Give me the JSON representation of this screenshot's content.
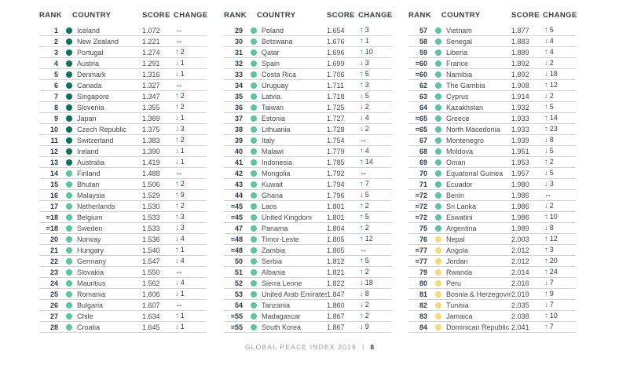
{
  "table_headers": {
    "rank": "RANK",
    "country": "COUNTRY",
    "score": "SCORE",
    "change": "CHANGE"
  },
  "footer": {
    "title": "GLOBAL PEACE INDEX 2019",
    "separator": "|",
    "page": "8"
  },
  "icons": {
    "up": "↑",
    "down": "↓",
    "same": "↔"
  },
  "colors": {
    "tier_very_high": "#0f7060",
    "tier_high": "#5fc3a3",
    "tier_medium": "#f6d87f",
    "arrow_up": "#00a651",
    "arrow_down": "#e8362d",
    "arrow_same": "#333e48",
    "header_text": "#333e48",
    "row_line": "#d4d4d4"
  },
  "columns": [
    {
      "rows": [
        {
          "rank": "1",
          "country": "Iceland",
          "score": "1.072",
          "tier": "very_high",
          "dir": "same",
          "delta": ""
        },
        {
          "rank": "2",
          "country": "New Zealand",
          "score": "1.221",
          "tier": "very_high",
          "dir": "same",
          "delta": ""
        },
        {
          "rank": "3",
          "country": "Portugal",
          "score": "1.274",
          "tier": "very_high",
          "dir": "up",
          "delta": "2"
        },
        {
          "rank": "4",
          "country": "Austria",
          "score": "1.291",
          "tier": "very_high",
          "dir": "down",
          "delta": "1"
        },
        {
          "rank": "5",
          "country": "Denmark",
          "score": "1.316",
          "tier": "very_high",
          "dir": "down",
          "delta": "1"
        },
        {
          "rank": "6",
          "country": "Canada",
          "score": "1.327",
          "tier": "very_high",
          "dir": "same",
          "delta": ""
        },
        {
          "rank": "7",
          "country": "Singapore",
          "score": "1.347",
          "tier": "very_high",
          "dir": "up",
          "delta": "2"
        },
        {
          "rank": "8",
          "country": "Slovenia",
          "score": "1.355",
          "tier": "very_high",
          "dir": "up",
          "delta": "2"
        },
        {
          "rank": "9",
          "country": "Japan",
          "score": "1.369",
          "tier": "very_high",
          "dir": "down",
          "delta": "1"
        },
        {
          "rank": "10",
          "country": "Czech Republic",
          "score": "1.375",
          "tier": "very_high",
          "dir": "down",
          "delta": "3"
        },
        {
          "rank": "11",
          "country": "Switzerland",
          "score": "1.383",
          "tier": "very_high",
          "dir": "up",
          "delta": "2"
        },
        {
          "rank": "12",
          "country": "Ireland",
          "score": "1.390",
          "tier": "very_high",
          "dir": "down",
          "delta": "1"
        },
        {
          "rank": "13",
          "country": "Australia",
          "score": "1.419",
          "tier": "very_high",
          "dir": "down",
          "delta": "1"
        },
        {
          "rank": "14",
          "country": "Finland",
          "score": "1.488",
          "tier": "high",
          "dir": "same",
          "delta": ""
        },
        {
          "rank": "15",
          "country": "Bhutan",
          "score": "1.506",
          "tier": "high",
          "dir": "up",
          "delta": "2"
        },
        {
          "rank": "16",
          "country": "Malaysia",
          "score": "1.529",
          "tier": "high",
          "dir": "up",
          "delta": "9"
        },
        {
          "rank": "17",
          "country": "Netherlands",
          "score": "1.530",
          "tier": "high",
          "dir": "up",
          "delta": "2"
        },
        {
          "rank": "=18",
          "country": "Belgium",
          "score": "1.533",
          "tier": "high",
          "dir": "up",
          "delta": "3"
        },
        {
          "rank": "=18",
          "country": "Sweden",
          "score": "1.533",
          "tier": "high",
          "dir": "down",
          "delta": "3"
        },
        {
          "rank": "20",
          "country": "Norway",
          "score": "1.536",
          "tier": "high",
          "dir": "down",
          "delta": "4"
        },
        {
          "rank": "21",
          "country": "Hungary",
          "score": "1.540",
          "tier": "high",
          "dir": "up",
          "delta": "1"
        },
        {
          "rank": "22",
          "country": "Germany",
          "score": "1.547",
          "tier": "high",
          "dir": "down",
          "delta": "4"
        },
        {
          "rank": "23",
          "country": "Slovakia",
          "score": "1.550",
          "tier": "high",
          "dir": "same",
          "delta": ""
        },
        {
          "rank": "24",
          "country": "Mauritius",
          "score": "1.562",
          "tier": "high",
          "dir": "down",
          "delta": "4"
        },
        {
          "rank": "25",
          "country": "Romania",
          "score": "1.606",
          "tier": "high",
          "dir": "down",
          "delta": "1"
        },
        {
          "rank": "26",
          "country": "Bulgaria",
          "score": "1.607",
          "tier": "high",
          "dir": "same",
          "delta": ""
        },
        {
          "rank": "27",
          "country": "Chile",
          "score": "1.634",
          "tier": "high",
          "dir": "up",
          "delta": "1"
        },
        {
          "rank": "28",
          "country": "Croatia",
          "score": "1.645",
          "tier": "high",
          "dir": "down",
          "delta": "1"
        }
      ]
    },
    {
      "rows": [
        {
          "rank": "29",
          "country": "Poland",
          "score": "1.654",
          "tier": "high",
          "dir": "up",
          "delta": "3"
        },
        {
          "rank": "30",
          "country": "Botswana",
          "score": "1.676",
          "tier": "high",
          "dir": "up",
          "delta": "1"
        },
        {
          "rank": "31",
          "country": "Qatar",
          "score": "1.696",
          "tier": "high",
          "dir": "up",
          "delta": "10"
        },
        {
          "rank": "32",
          "country": "Spain",
          "score": "1.699",
          "tier": "high",
          "dir": "down",
          "delta": "3"
        },
        {
          "rank": "33",
          "country": "Costa Rica",
          "score": "1.706",
          "tier": "high",
          "dir": "up",
          "delta": "5"
        },
        {
          "rank": "34",
          "country": "Uruguay",
          "score": "1.711",
          "tier": "high",
          "dir": "up",
          "delta": "3"
        },
        {
          "rank": "35",
          "country": "Latvia",
          "score": "1.718",
          "tier": "high",
          "dir": "down",
          "delta": "5"
        },
        {
          "rank": "36",
          "country": "Taiwan",
          "score": "1.725",
          "tier": "high",
          "dir": "down",
          "delta": "2"
        },
        {
          "rank": "37",
          "country": "Estonia",
          "score": "1.727",
          "tier": "high",
          "dir": "down",
          "delta": "4"
        },
        {
          "rank": "38",
          "country": "Lithuania",
          "score": "1.728",
          "tier": "high",
          "dir": "down",
          "delta": "2"
        },
        {
          "rank": "39",
          "country": "Italy",
          "score": "1.754",
          "tier": "high",
          "dir": "same",
          "delta": ""
        },
        {
          "rank": "40",
          "country": "Malawi",
          "score": "1.779",
          "tier": "high",
          "dir": "up",
          "delta": "4"
        },
        {
          "rank": "41",
          "country": "Indonesia",
          "score": "1.785",
          "tier": "high",
          "dir": "up",
          "delta": "14"
        },
        {
          "rank": "42",
          "country": "Mongolia",
          "score": "1.792",
          "tier": "high",
          "dir": "same",
          "delta": ""
        },
        {
          "rank": "43",
          "country": "Kuwait",
          "score": "1.794",
          "tier": "high",
          "dir": "up",
          "delta": "7"
        },
        {
          "rank": "44",
          "country": "Ghana",
          "score": "1.796",
          "tier": "high",
          "dir": "down",
          "delta": "5"
        },
        {
          "rank": "=45",
          "country": "Laos",
          "score": "1.801",
          "tier": "high",
          "dir": "up",
          "delta": "2"
        },
        {
          "rank": "=45",
          "country": "United Kingdom",
          "score": "1.801",
          "tier": "high",
          "dir": "up",
          "delta": "5"
        },
        {
          "rank": "47",
          "country": "Panama",
          "score": "1.804",
          "tier": "high",
          "dir": "up",
          "delta": "2"
        },
        {
          "rank": "=48",
          "country": "Timor-Leste",
          "score": "1.805",
          "tier": "high",
          "dir": "up",
          "delta": "12"
        },
        {
          "rank": "=48",
          "country": "Zambia",
          "score": "1.805",
          "tier": "high",
          "dir": "same",
          "delta": ""
        },
        {
          "rank": "50",
          "country": "Serbia",
          "score": "1.812",
          "tier": "high",
          "dir": "up",
          "delta": "5"
        },
        {
          "rank": "51",
          "country": "Albania",
          "score": "1.821",
          "tier": "high",
          "dir": "up",
          "delta": "2"
        },
        {
          "rank": "52",
          "country": "Sierra Leone",
          "score": "1.822",
          "tier": "high",
          "dir": "down",
          "delta": "18"
        },
        {
          "rank": "53",
          "country": "United Arab Emirates",
          "score": "1.847",
          "tier": "high",
          "dir": "down",
          "delta": "8"
        },
        {
          "rank": "54",
          "country": "Tanzania",
          "score": "1.860",
          "tier": "high",
          "dir": "down",
          "delta": "2"
        },
        {
          "rank": "=55",
          "country": "Madagascar",
          "score": "1.867",
          "tier": "high",
          "dir": "up",
          "delta": "2"
        },
        {
          "rank": "=55",
          "country": "South Korea",
          "score": "1.867",
          "tier": "high",
          "dir": "down",
          "delta": "9"
        }
      ]
    },
    {
      "rows": [
        {
          "rank": "57",
          "country": "Vietnam",
          "score": "1.877",
          "tier": "high",
          "dir": "up",
          "delta": "5"
        },
        {
          "rank": "58",
          "country": "Senegal",
          "score": "1.883",
          "tier": "high",
          "dir": "down",
          "delta": "4"
        },
        {
          "rank": "59",
          "country": "Liberia",
          "score": "1.889",
          "tier": "high",
          "dir": "up",
          "delta": "4"
        },
        {
          "rank": "=60",
          "country": "France",
          "score": "1.892",
          "tier": "high",
          "dir": "down",
          "delta": "2"
        },
        {
          "rank": "=60",
          "country": "Namibia",
          "score": "1.892",
          "tier": "high",
          "dir": "down",
          "delta": "18"
        },
        {
          "rank": "62",
          "country": "The Gambia",
          "score": "1.908",
          "tier": "high",
          "dir": "up",
          "delta": "12"
        },
        {
          "rank": "63",
          "country": "Cyprus",
          "score": "1.914",
          "tier": "high",
          "dir": "down",
          "delta": "2"
        },
        {
          "rank": "64",
          "country": "Kazakhstan",
          "score": "1.932",
          "tier": "high",
          "dir": "up",
          "delta": "5"
        },
        {
          "rank": "=65",
          "country": "Greece",
          "score": "1.933",
          "tier": "high",
          "dir": "up",
          "delta": "14"
        },
        {
          "rank": "=65",
          "country": "North Macedonia",
          "score": "1.933",
          "tier": "high",
          "dir": "up",
          "delta": "23"
        },
        {
          "rank": "67",
          "country": "Montenegro",
          "score": "1.939",
          "tier": "high",
          "dir": "down",
          "delta": "8"
        },
        {
          "rank": "68",
          "country": "Moldova",
          "score": "1.951",
          "tier": "high",
          "dir": "down",
          "delta": "5"
        },
        {
          "rank": "69",
          "country": "Oman",
          "score": "1.953",
          "tier": "high",
          "dir": "up",
          "delta": "2"
        },
        {
          "rank": "70",
          "country": "Equatorial Guinea",
          "score": "1.957",
          "tier": "high",
          "dir": "down",
          "delta": "5"
        },
        {
          "rank": "71",
          "country": "Ecuador",
          "score": "1.980",
          "tier": "high",
          "dir": "down",
          "delta": "3"
        },
        {
          "rank": "=72",
          "country": "Benin",
          "score": "1.986",
          "tier": "high",
          "dir": "same",
          "delta": ""
        },
        {
          "rank": "=72",
          "country": "Sri Lanka",
          "score": "1.986",
          "tier": "high",
          "dir": "down",
          "delta": "2"
        },
        {
          "rank": "=72",
          "country": "Eswatini",
          "score": "1.986",
          "tier": "high",
          "dir": "up",
          "delta": "10"
        },
        {
          "rank": "75",
          "country": "Argentina",
          "score": "1.989",
          "tier": "high",
          "dir": "down",
          "delta": "8"
        },
        {
          "rank": "76",
          "country": "Nepal",
          "score": "2.003",
          "tier": "medium",
          "dir": "up",
          "delta": "12"
        },
        {
          "rank": "=77",
          "country": "Angola",
          "score": "2.012",
          "tier": "medium",
          "dir": "up",
          "delta": "3"
        },
        {
          "rank": "=77",
          "country": "Jordan",
          "score": "2.012",
          "tier": "medium",
          "dir": "up",
          "delta": "20"
        },
        {
          "rank": "79",
          "country": "Rwanda",
          "score": "2.014",
          "tier": "medium",
          "dir": "up",
          "delta": "24"
        },
        {
          "rank": "80",
          "country": "Peru",
          "score": "2.016",
          "tier": "medium",
          "dir": "down",
          "delta": "7"
        },
        {
          "rank": "81",
          "country": "Bosnia & Herzegovina",
          "score": "2.019",
          "tier": "medium",
          "dir": "up",
          "delta": "9"
        },
        {
          "rank": "82",
          "country": "Tunisia",
          "score": "2.035",
          "tier": "medium",
          "dir": "down",
          "delta": "7"
        },
        {
          "rank": "83",
          "country": "Jamaica",
          "score": "2.038",
          "tier": "medium",
          "dir": "up",
          "delta": "10"
        },
        {
          "rank": "84",
          "country": "Dominican Republic",
          "score": "2.041",
          "tier": "medium",
          "dir": "up",
          "delta": "7"
        }
      ]
    }
  ]
}
